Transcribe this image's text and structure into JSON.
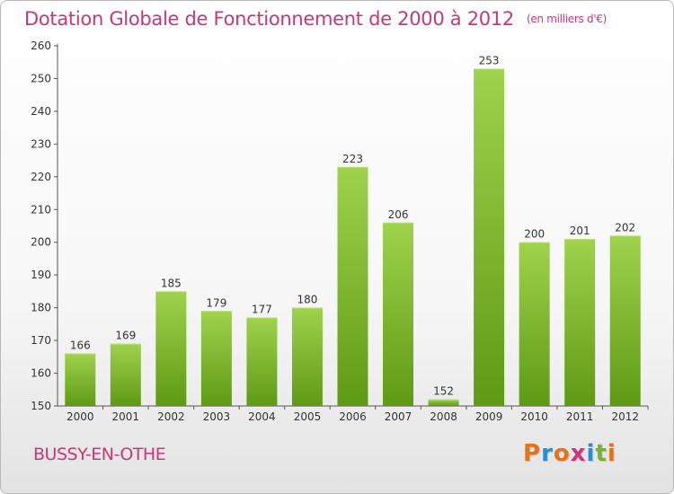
{
  "chart_data": {
    "type": "bar",
    "title": "Dotation Globale de Fonctionnement de 2000 à 2012",
    "subtitle": "(en milliers d'€)",
    "categories": [
      "2000",
      "2001",
      "2002",
      "2003",
      "2004",
      "2005",
      "2006",
      "2007",
      "2008",
      "2009",
      "2010",
      "2011",
      "2012"
    ],
    "values": [
      166,
      169,
      185,
      179,
      177,
      180,
      223,
      206,
      152,
      253,
      200,
      201,
      202
    ],
    "ylim": [
      150,
      260
    ],
    "yticks": [
      150,
      160,
      170,
      180,
      190,
      200,
      210,
      220,
      230,
      240,
      250,
      260
    ],
    "grid": false,
    "bar_color": "#7ab62a"
  },
  "commune": "BUSSY-EN-OTHE",
  "logo": {
    "letters": [
      "P",
      "r",
      "o",
      "x",
      "i",
      "t",
      "i"
    ],
    "colors": [
      "#e4731a",
      "#2a8fd0",
      "#e4731a",
      "#c8377a",
      "#2a8fd0",
      "#78b428",
      "#e4731a"
    ]
  }
}
